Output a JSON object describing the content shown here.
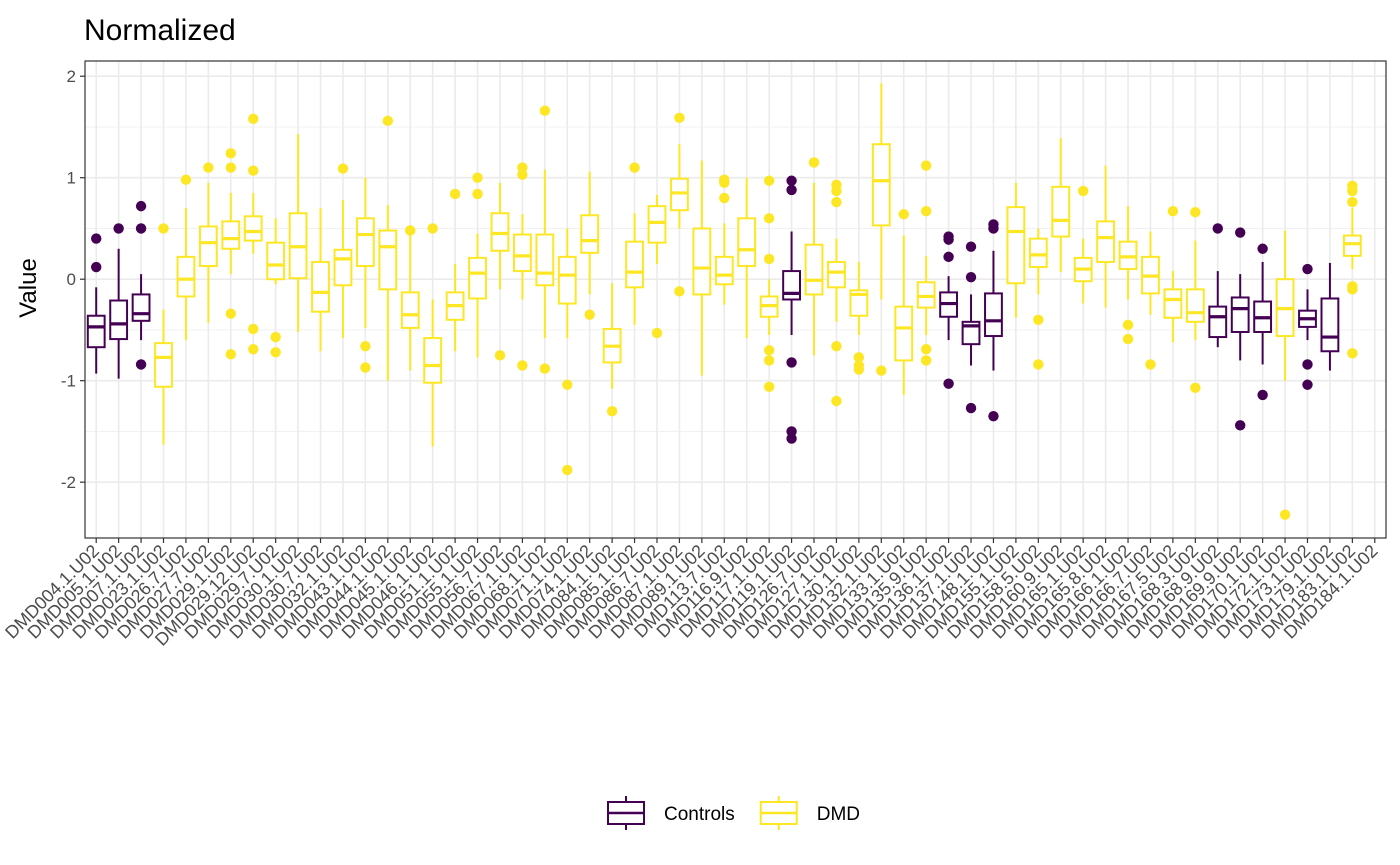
{
  "chart_data": {
    "type": "boxplot",
    "title": "Normalized",
    "xlabel": "",
    "ylabel": "Value",
    "ylim": [
      -2.55,
      2.15
    ],
    "yticks": [
      -2,
      -1,
      0,
      1,
      2
    ],
    "grid": true,
    "legend_position": "bottom",
    "groups": [
      {
        "name": "Controls",
        "color": "#440154"
      },
      {
        "name": "DMD",
        "color": "#FDE725"
      }
    ],
    "categories": [
      "DMD004.1.U02",
      "DMD005.1.U02",
      "DMD007.1.U02",
      "DMD023.1.U02",
      "DMD026.7.U02",
      "DMD027.7.U02",
      "DMD029.1.U02",
      "DMD029.12.U02",
      "DMD029.7.U02",
      "DMD030.1.U02",
      "DMD030.7.U02",
      "DMD032.1.U02",
      "DMD043.1.U02",
      "DMD044.1.U02",
      "DMD045.1.U02",
      "DMD046.1.U02",
      "DMD051.1.U02",
      "DMD055.1.U02",
      "DMD056.7.U02",
      "DMD067.1.U02",
      "DMD068.1.U02",
      "DMD071.1.U02",
      "DMD074.1.U02",
      "DMD084.1.U02",
      "DMD085.1.U02",
      "DMD086.7.U02",
      "DMD087.1.U02",
      "DMD089.1.U02",
      "DMD113.7.U02",
      "DMD116.9.U02",
      "DMD117.1.U02",
      "DMD119.1.U02",
      "DMD126.7.U02",
      "DMD127.1.U02",
      "DMD130.1.U02",
      "DMD132.1.U02",
      "DMD133.1.U02",
      "DMD135.9.U02",
      "DMD136.1.U02",
      "DMD137.1.U02",
      "DMD148.1.U02",
      "DMD155.1.U02",
      "DMD158.5.U02",
      "DMD160.9.U02",
      "DMD165.1.U02",
      "DMD165.8.U02",
      "DMD166.1.U02",
      "DMD166.7.U02",
      "DMD167.5.U02",
      "DMD168.3.U02",
      "DMD168.9.U02",
      "DMD169.9.U02",
      "DMD170.1.U02",
      "DMD172.1.U02",
      "DMD173.1.U02",
      "DMD179.1.U02",
      "DMD183.1.U02",
      "DMD184.1.U02"
    ],
    "boxes": [
      {
        "group": "Controls",
        "whisker_low": -0.93,
        "q1": -0.67,
        "median": -0.47,
        "q3": -0.36,
        "whisker_high": -0.08,
        "outliers": [
          0.4,
          0.12
        ]
      },
      {
        "group": "Controls",
        "whisker_low": -0.98,
        "q1": -0.59,
        "median": -0.44,
        "q3": -0.21,
        "whisker_high": 0.3,
        "outliers": [
          0.5
        ]
      },
      {
        "group": "Controls",
        "whisker_low": -0.6,
        "q1": -0.41,
        "median": -0.34,
        "q3": -0.15,
        "whisker_high": 0.05,
        "outliers": [
          0.72,
          0.5,
          -0.84
        ]
      },
      {
        "group": "DMD",
        "whisker_low": -1.63,
        "q1": -1.06,
        "median": -0.77,
        "q3": -0.63,
        "whisker_high": -0.3,
        "outliers": [
          0.5
        ]
      },
      {
        "group": "DMD",
        "whisker_low": -0.6,
        "q1": -0.17,
        "median": 0.0,
        "q3": 0.22,
        "whisker_high": 0.7,
        "outliers": [
          0.98
        ]
      },
      {
        "group": "DMD",
        "whisker_low": -0.43,
        "q1": 0.13,
        "median": 0.36,
        "q3": 0.52,
        "whisker_high": 0.95,
        "outliers": [
          1.1
        ]
      },
      {
        "group": "DMD",
        "whisker_low": 0.05,
        "q1": 0.3,
        "median": 0.4,
        "q3": 0.57,
        "whisker_high": 0.85,
        "outliers": [
          1.24,
          1.1,
          -0.34,
          -0.74
        ]
      },
      {
        "group": "DMD",
        "whisker_low": 0.25,
        "q1": 0.38,
        "median": 0.47,
        "q3": 0.62,
        "whisker_high": 0.85,
        "outliers": [
          1.58,
          1.07,
          -0.49,
          -0.69
        ]
      },
      {
        "group": "DMD",
        "whisker_low": -0.05,
        "q1": 0.0,
        "median": 0.14,
        "q3": 0.36,
        "whisker_high": 0.6,
        "outliers": [
          -0.57,
          -0.72
        ]
      },
      {
        "group": "DMD",
        "whisker_low": -0.52,
        "q1": 0.01,
        "median": 0.32,
        "q3": 0.65,
        "whisker_high": 1.43,
        "outliers": []
      },
      {
        "group": "DMD",
        "whisker_low": -0.71,
        "q1": -0.32,
        "median": -0.13,
        "q3": 0.17,
        "whisker_high": 0.7,
        "outliers": []
      },
      {
        "group": "DMD",
        "whisker_low": -0.58,
        "q1": -0.06,
        "median": 0.2,
        "q3": 0.29,
        "whisker_high": 0.78,
        "outliers": [
          1.09
        ]
      },
      {
        "group": "DMD",
        "whisker_low": -0.48,
        "q1": 0.13,
        "median": 0.44,
        "q3": 0.6,
        "whisker_high": 1.0,
        "outliers": [
          -0.66,
          -0.87
        ]
      },
      {
        "group": "DMD",
        "whisker_low": -1.0,
        "q1": -0.1,
        "median": 0.32,
        "q3": 0.48,
        "whisker_high": 0.73,
        "outliers": [
          1.56
        ]
      },
      {
        "group": "DMD",
        "whisker_low": -0.9,
        "q1": -0.48,
        "median": -0.35,
        "q3": -0.13,
        "whisker_high": 0.45,
        "outliers": [
          0.48
        ]
      },
      {
        "group": "DMD",
        "whisker_low": -1.65,
        "q1": -1.02,
        "median": -0.85,
        "q3": -0.58,
        "whisker_high": -0.2,
        "outliers": [
          0.5
        ]
      },
      {
        "group": "DMD",
        "whisker_low": -0.71,
        "q1": -0.4,
        "median": -0.26,
        "q3": -0.13,
        "whisker_high": 0.15,
        "outliers": [
          0.84
        ]
      },
      {
        "group": "DMD",
        "whisker_low": -0.77,
        "q1": -0.19,
        "median": 0.06,
        "q3": 0.21,
        "whisker_high": 0.45,
        "outliers": [
          1.0,
          0.84
        ]
      },
      {
        "group": "DMD",
        "whisker_low": -0.1,
        "q1": 0.28,
        "median": 0.45,
        "q3": 0.65,
        "whisker_high": 0.95,
        "outliers": [
          -0.75
        ]
      },
      {
        "group": "DMD",
        "whisker_low": -0.2,
        "q1": 0.08,
        "median": 0.23,
        "q3": 0.44,
        "whisker_high": 0.64,
        "outliers": [
          1.1,
          1.03,
          -0.85
        ]
      },
      {
        "group": "DMD",
        "whisker_low": -0.58,
        "q1": -0.06,
        "median": 0.06,
        "q3": 0.44,
        "whisker_high": 1.08,
        "outliers": [
          1.66,
          -0.88
        ]
      },
      {
        "group": "DMD",
        "whisker_low": -0.58,
        "q1": -0.24,
        "median": 0.04,
        "q3": 0.22,
        "whisker_high": 0.5,
        "outliers": [
          -1.04,
          -1.88
        ]
      },
      {
        "group": "DMD",
        "whisker_low": -0.15,
        "q1": 0.26,
        "median": 0.38,
        "q3": 0.63,
        "whisker_high": 1.06,
        "outliers": [
          -0.35
        ]
      },
      {
        "group": "DMD",
        "whisker_low": -1.08,
        "q1": -0.82,
        "median": -0.66,
        "q3": -0.49,
        "whisker_high": -0.04,
        "outliers": [
          -1.3
        ]
      },
      {
        "group": "DMD",
        "whisker_low": -0.45,
        "q1": -0.08,
        "median": 0.07,
        "q3": 0.37,
        "whisker_high": 0.65,
        "outliers": [
          1.1
        ]
      },
      {
        "group": "DMD",
        "whisker_low": 0.15,
        "q1": 0.36,
        "median": 0.56,
        "q3": 0.72,
        "whisker_high": 0.83,
        "outliers": [
          -0.53
        ]
      },
      {
        "group": "DMD",
        "whisker_low": 0.5,
        "q1": 0.68,
        "median": 0.85,
        "q3": 0.99,
        "whisker_high": 1.33,
        "outliers": [
          1.59,
          -0.12
        ]
      },
      {
        "group": "DMD",
        "whisker_low": -0.95,
        "q1": -0.15,
        "median": 0.11,
        "q3": 0.5,
        "whisker_high": 1.17,
        "outliers": []
      },
      {
        "group": "DMD",
        "whisker_low": -0.25,
        "q1": -0.05,
        "median": 0.04,
        "q3": 0.22,
        "whisker_high": 0.55,
        "outliers": [
          0.98,
          0.95,
          0.8
        ]
      },
      {
        "group": "DMD",
        "whisker_low": -0.58,
        "q1": 0.13,
        "median": 0.29,
        "q3": 0.6,
        "whisker_high": 1.0,
        "outliers": []
      },
      {
        "group": "DMD",
        "whisker_low": -0.55,
        "q1": -0.37,
        "median": -0.26,
        "q3": -0.17,
        "whisker_high": 0.0,
        "outliers": [
          0.97,
          0.6,
          0.2,
          -0.7,
          -0.8,
          -1.06
        ]
      },
      {
        "group": "Controls",
        "whisker_low": -0.55,
        "q1": -0.2,
        "median": -0.14,
        "q3": 0.08,
        "whisker_high": 0.47,
        "outliers": [
          0.97,
          0.88,
          -0.82,
          -1.5,
          -1.57
        ]
      },
      {
        "group": "DMD",
        "whisker_low": -0.75,
        "q1": -0.15,
        "median": -0.01,
        "q3": 0.34,
        "whisker_high": 0.95,
        "outliers": [
          1.15
        ]
      },
      {
        "group": "DMD",
        "whisker_low": -0.42,
        "q1": -0.08,
        "median": 0.07,
        "q3": 0.17,
        "whisker_high": 0.4,
        "outliers": [
          0.93,
          0.87,
          0.76,
          -0.66,
          -1.2
        ]
      },
      {
        "group": "DMD",
        "whisker_low": -0.55,
        "q1": -0.36,
        "median": -0.15,
        "q3": -0.11,
        "whisker_high": 0.17,
        "outliers": [
          -0.77,
          -0.85,
          -0.89
        ]
      },
      {
        "group": "DMD",
        "whisker_low": -0.2,
        "q1": 0.53,
        "median": 0.97,
        "q3": 1.33,
        "whisker_high": 1.93,
        "outliers": [
          -0.9
        ]
      },
      {
        "group": "DMD",
        "whisker_low": -1.14,
        "q1": -0.8,
        "median": -0.48,
        "q3": -0.27,
        "whisker_high": 0.43,
        "outliers": [
          0.64
        ]
      },
      {
        "group": "DMD",
        "whisker_low": -0.55,
        "q1": -0.28,
        "median": -0.17,
        "q3": -0.03,
        "whisker_high": 0.23,
        "outliers": [
          1.12,
          0.67,
          -0.69,
          -0.8
        ]
      },
      {
        "group": "Controls",
        "whisker_low": -0.6,
        "q1": -0.37,
        "median": -0.24,
        "q3": -0.13,
        "whisker_high": 0.03,
        "outliers": [
          0.42,
          0.39,
          0.22,
          -1.03
        ]
      },
      {
        "group": "Controls",
        "whisker_low": -0.85,
        "q1": -0.64,
        "median": -0.46,
        "q3": -0.42,
        "whisker_high": -0.15,
        "outliers": [
          0.32,
          0.02,
          -1.27
        ]
      },
      {
        "group": "Controls",
        "whisker_low": -0.9,
        "q1": -0.56,
        "median": -0.41,
        "q3": -0.14,
        "whisker_high": 0.28,
        "outliers": [
          0.54,
          0.5,
          -1.35
        ]
      },
      {
        "group": "DMD",
        "whisker_low": -0.38,
        "q1": -0.04,
        "median": 0.47,
        "q3": 0.71,
        "whisker_high": 0.95,
        "outliers": []
      },
      {
        "group": "DMD",
        "whisker_low": -0.15,
        "q1": 0.12,
        "median": 0.24,
        "q3": 0.4,
        "whisker_high": 0.5,
        "outliers": [
          -0.4,
          -0.84
        ]
      },
      {
        "group": "DMD",
        "whisker_low": 0.07,
        "q1": 0.42,
        "median": 0.58,
        "q3": 0.91,
        "whisker_high": 1.39,
        "outliers": []
      },
      {
        "group": "DMD",
        "whisker_low": -0.24,
        "q1": -0.02,
        "median": 0.1,
        "q3": 0.21,
        "whisker_high": 0.4,
        "outliers": [
          0.87
        ]
      },
      {
        "group": "DMD",
        "whisker_low": -0.28,
        "q1": 0.17,
        "median": 0.41,
        "q3": 0.57,
        "whisker_high": 1.12,
        "outliers": []
      },
      {
        "group": "DMD",
        "whisker_low": -0.2,
        "q1": 0.1,
        "median": 0.22,
        "q3": 0.37,
        "whisker_high": 0.72,
        "outliers": [
          -0.45,
          -0.59
        ]
      },
      {
        "group": "DMD",
        "whisker_low": -0.35,
        "q1": -0.14,
        "median": 0.03,
        "q3": 0.22,
        "whisker_high": 0.47,
        "outliers": [
          -0.84
        ]
      },
      {
        "group": "DMD",
        "whisker_low": -0.62,
        "q1": -0.38,
        "median": -0.2,
        "q3": -0.1,
        "whisker_high": 0.08,
        "outliers": [
          0.67
        ]
      },
      {
        "group": "DMD",
        "whisker_low": -0.6,
        "q1": -0.42,
        "median": -0.33,
        "q3": -0.1,
        "whisker_high": 0.38,
        "outliers": [
          0.66,
          -1.07
        ]
      },
      {
        "group": "Controls",
        "whisker_low": -0.67,
        "q1": -0.57,
        "median": -0.37,
        "q3": -0.27,
        "whisker_high": 0.08,
        "outliers": [
          0.5
        ]
      },
      {
        "group": "Controls",
        "whisker_low": -0.8,
        "q1": -0.52,
        "median": -0.29,
        "q3": -0.18,
        "whisker_high": 0.05,
        "outliers": [
          0.46,
          -1.44
        ]
      },
      {
        "group": "Controls",
        "whisker_low": -0.84,
        "q1": -0.52,
        "median": -0.38,
        "q3": -0.22,
        "whisker_high": 0.17,
        "outliers": [
          0.3,
          -1.14
        ]
      },
      {
        "group": "DMD",
        "whisker_low": -1.0,
        "q1": -0.56,
        "median": -0.29,
        "q3": 0.0,
        "whisker_high": 0.48,
        "outliers": [
          -2.32
        ]
      },
      {
        "group": "Controls",
        "whisker_low": -0.6,
        "q1": -0.47,
        "median": -0.39,
        "q3": -0.31,
        "whisker_high": -0.1,
        "outliers": [
          0.1,
          -0.84,
          -1.04
        ]
      },
      {
        "group": "Controls",
        "whisker_low": -0.9,
        "q1": -0.71,
        "median": -0.57,
        "q3": -0.19,
        "whisker_high": 0.16,
        "outliers": []
      },
      {
        "group": "DMD",
        "whisker_low": 0.1,
        "q1": 0.23,
        "median": 0.35,
        "q3": 0.43,
        "whisker_high": 0.7,
        "outliers": [
          0.92,
          0.87,
          0.76,
          -0.07,
          -0.1,
          -0.73
        ]
      }
    ]
  }
}
